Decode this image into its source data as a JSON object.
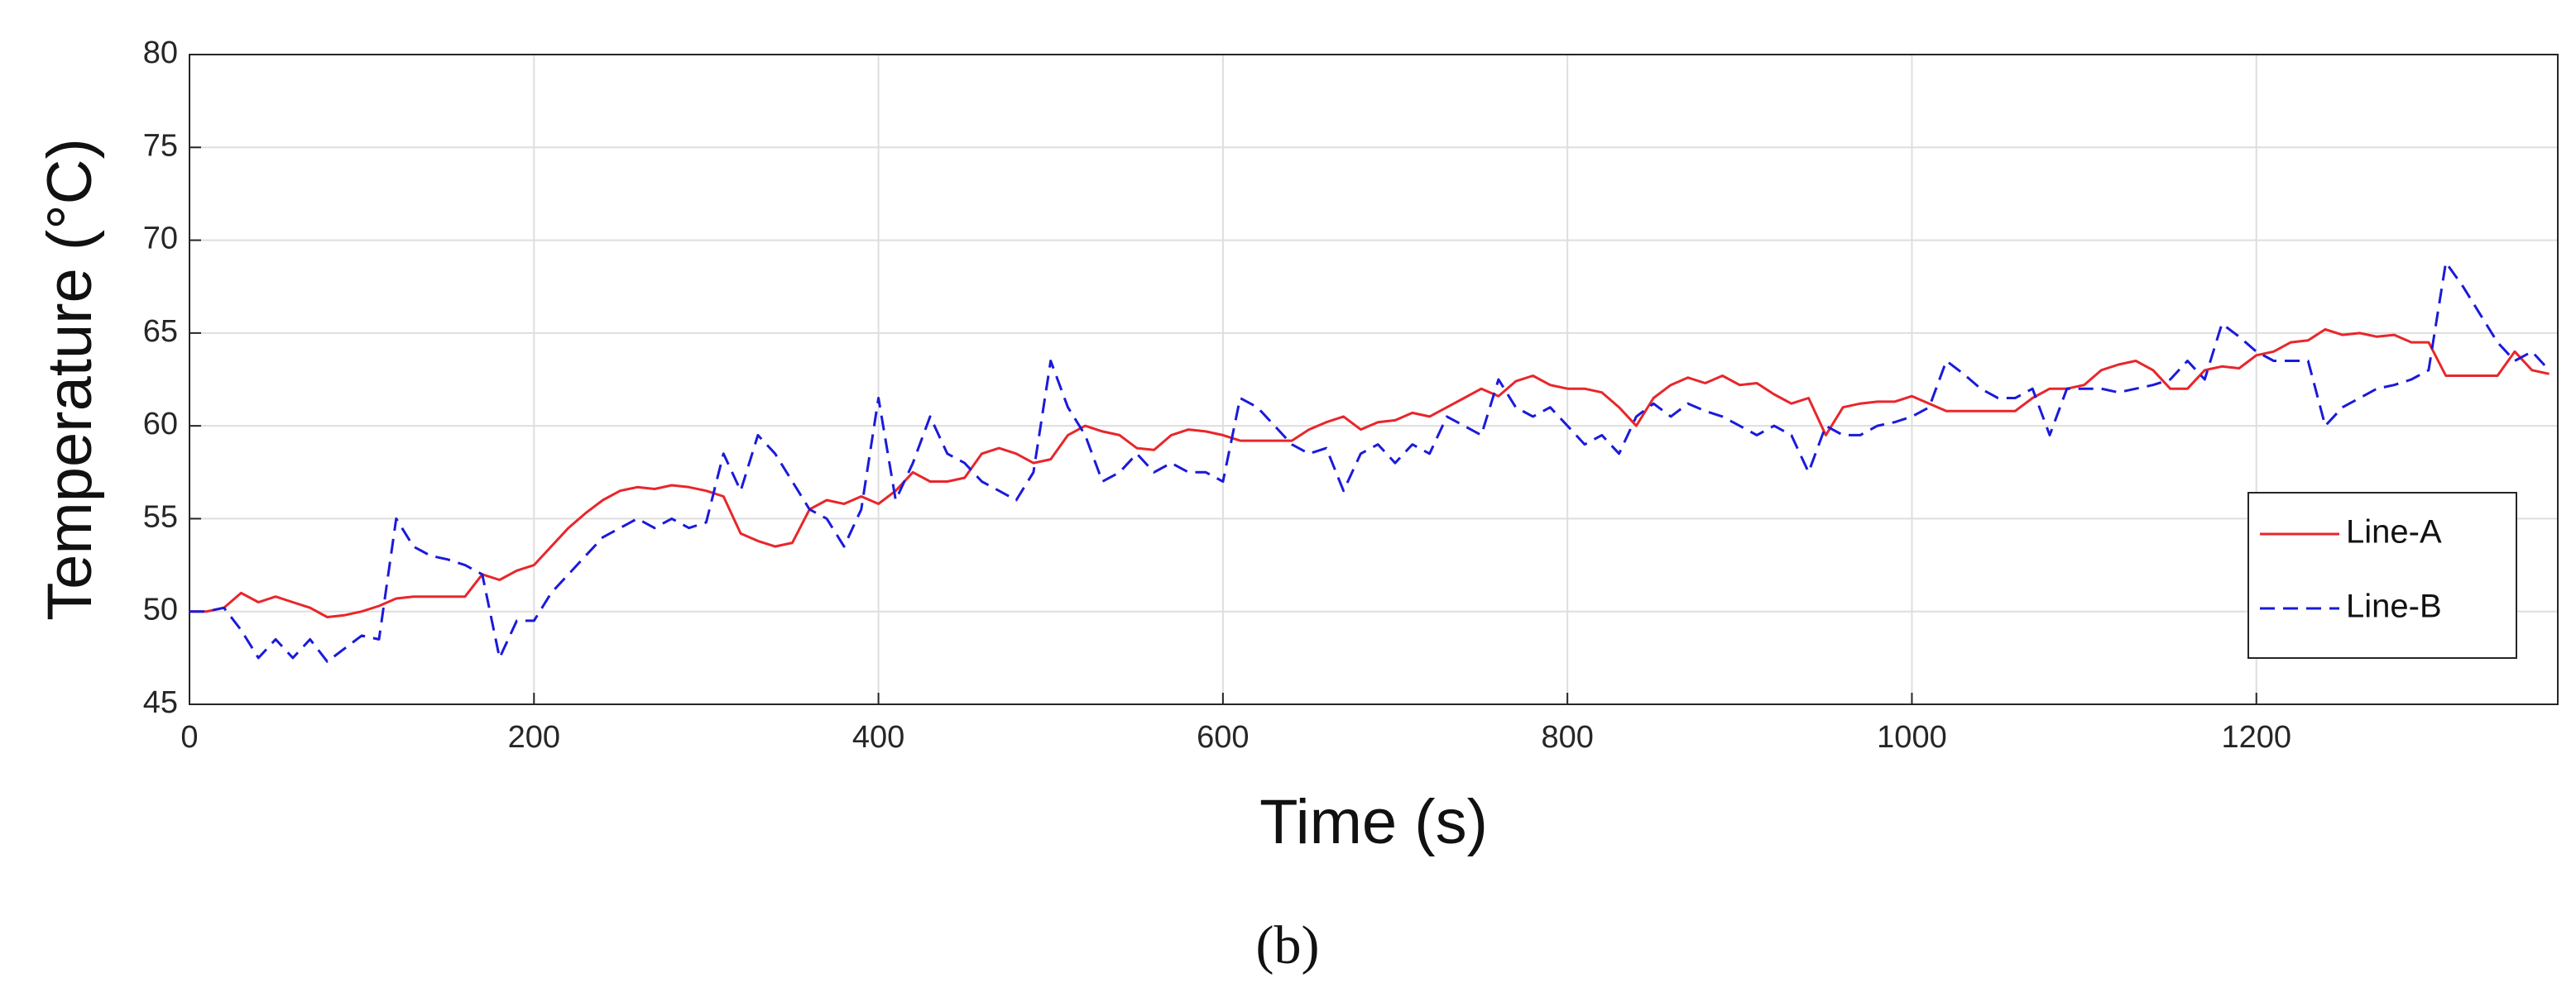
{
  "chart_data": {
    "type": "line",
    "xlabel": "Time (s)",
    "ylabel": "Temperature (°C)",
    "caption": "(b)",
    "x": [
      0,
      10,
      20,
      30,
      40,
      50,
      60,
      70,
      80,
      90,
      100,
      110,
      120,
      130,
      140,
      150,
      160,
      170,
      180,
      190,
      200,
      210,
      220,
      230,
      240,
      250,
      260,
      270,
      280,
      290,
      300,
      310,
      320,
      330,
      340,
      350,
      360,
      370,
      380,
      390,
      400,
      410,
      420,
      430,
      440,
      450,
      460,
      470,
      480,
      490,
      500,
      510,
      520,
      530,
      540,
      550,
      560,
      570,
      580,
      590,
      600,
      610,
      620,
      630,
      640,
      650,
      660,
      670,
      680,
      690,
      700,
      710,
      720,
      730,
      740,
      750,
      760,
      770,
      780,
      790,
      800,
      810,
      820,
      830,
      840,
      850,
      860,
      870,
      880,
      890,
      900,
      910,
      920,
      930,
      940,
      950,
      960,
      970,
      980,
      990,
      1000,
      1010,
      1020,
      1030,
      1040,
      1050,
      1060,
      1070,
      1080,
      1090,
      1100,
      1110,
      1120,
      1130,
      1140,
      1150,
      1160,
      1170,
      1180,
      1190,
      1200,
      1210,
      1220,
      1230,
      1240,
      1250,
      1260,
      1270,
      1280,
      1290,
      1300,
      1310,
      1320,
      1330,
      1340,
      1350,
      1360,
      1370
    ],
    "series": [
      {
        "name": "Line-A",
        "color": "#e8262b",
        "linestyle": "solid",
        "values": [
          50,
          50,
          50.2,
          51,
          50.5,
          50.8,
          50.5,
          50.2,
          49.7,
          49.8,
          50,
          50.3,
          50.7,
          50.8,
          50.8,
          50.8,
          50.8,
          52,
          51.7,
          52.2,
          52.5,
          53.5,
          54.5,
          55.3,
          56,
          56.5,
          56.7,
          56.6,
          56.8,
          56.7,
          56.5,
          56.2,
          54.2,
          53.8,
          53.5,
          53.7,
          55.5,
          56,
          55.8,
          56.2,
          55.8,
          56.5,
          57.5,
          57,
          57,
          57.2,
          58.5,
          58.8,
          58.5,
          58,
          58.2,
          59.5,
          60,
          59.7,
          59.5,
          58.8,
          58.7,
          59.5,
          59.8,
          59.7,
          59.5,
          59.2,
          59.2,
          59.2,
          59.2,
          59.8,
          60.2,
          60.5,
          59.8,
          60.2,
          60.3,
          60.7,
          60.5,
          61,
          61.5,
          62,
          61.6,
          62.4,
          62.7,
          62.2,
          62,
          62,
          61.8,
          61,
          60,
          61.5,
          62.2,
          62.6,
          62.3,
          62.7,
          62.2,
          62.3,
          61.7,
          61.2,
          61.5,
          59.5,
          61,
          61.2,
          61.3,
          61.3,
          61.6,
          61.2,
          60.8,
          60.8,
          60.8,
          60.8,
          60.8,
          61.5,
          62,
          62,
          62.2,
          63,
          63.3,
          63.5,
          63,
          62,
          62,
          63,
          63.2,
          63.1,
          63.8,
          64,
          64.5,
          64.6,
          65.2,
          64.9,
          65,
          64.8,
          64.9,
          64.5,
          64.5,
          62.7,
          62.7,
          62.7,
          62.7,
          64,
          63,
          62.8
        ]
      },
      {
        "name": "Line-B",
        "color": "#1a1adb",
        "linestyle": "dashed",
        "values": [
          50,
          50,
          50.2,
          49,
          47.5,
          48.5,
          47.5,
          48.5,
          47.3,
          48,
          48.7,
          48.5,
          55,
          53.5,
          53,
          52.8,
          52.5,
          52,
          47.5,
          49.5,
          49.5,
          51,
          52,
          53,
          54,
          54.5,
          55,
          54.5,
          55,
          54.5,
          54.8,
          58.5,
          56.5,
          59.5,
          58.5,
          57,
          55.5,
          55,
          53.5,
          55.5,
          61.5,
          56,
          58,
          60.5,
          58.5,
          58,
          57,
          56.5,
          56,
          57.5,
          63.5,
          61,
          59.5,
          57,
          57.5,
          58.5,
          57.5,
          58,
          57.5,
          57.5,
          57,
          61.5,
          61,
          60,
          59,
          58.5,
          58.8,
          56.5,
          58.5,
          59,
          58,
          59,
          58.5,
          60.5,
          60,
          59.5,
          62.5,
          61,
          60.5,
          61,
          60,
          59,
          59.5,
          58.5,
          60.5,
          61.2,
          60.5,
          61.2,
          60.8,
          60.5,
          60,
          59.5,
          60,
          59.5,
          57.5,
          60,
          59.5,
          59.5,
          60,
          60.2,
          60.5,
          61,
          63.5,
          62.8,
          62,
          61.5,
          61.5,
          62,
          59.5,
          62,
          62,
          62,
          61.8,
          62,
          62.2,
          62.5,
          63.5,
          62.5,
          65.5,
          64.8,
          64,
          63.5,
          63.5,
          63.5,
          60,
          61,
          61.5,
          62,
          62.2,
          62.5,
          63,
          68.8,
          67.5,
          66,
          64.5,
          63.5,
          64,
          63
        ]
      }
    ],
    "xlim": [
      0,
      1375
    ],
    "xticks": [
      0,
      200,
      400,
      600,
      800,
      1000,
      1200
    ],
    "ylim": [
      45,
      80
    ],
    "yticks": [
      45,
      50,
      55,
      60,
      65,
      70,
      75,
      80
    ],
    "grid": true,
    "legend": "lower right"
  }
}
